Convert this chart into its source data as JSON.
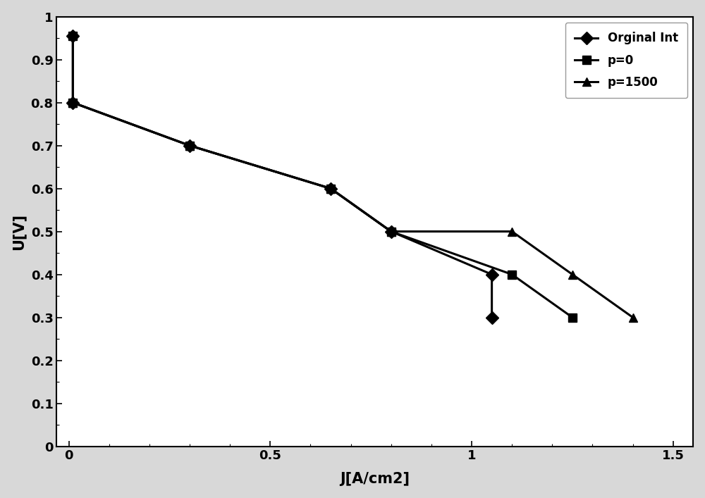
{
  "series": [
    {
      "label": "Orginal Int",
      "x": [
        0.01,
        0.01,
        0.3,
        0.65,
        0.8,
        1.05,
        1.05
      ],
      "y": [
        0.955,
        0.8,
        0.7,
        0.6,
        0.5,
        0.4,
        0.3
      ],
      "marker": "D",
      "markersize": 9,
      "color": "#000000"
    },
    {
      "label": "p=0",
      "x": [
        0.01,
        0.01,
        0.3,
        0.65,
        0.8,
        1.1,
        1.25
      ],
      "y": [
        0.955,
        0.8,
        0.7,
        0.6,
        0.5,
        0.4,
        0.3
      ],
      "marker": "s",
      "markersize": 9,
      "color": "#000000"
    },
    {
      "label": "p=1500",
      "x": [
        0.01,
        0.3,
        0.65,
        0.8,
        1.1,
        1.25,
        1.4
      ],
      "y": [
        0.8,
        0.7,
        0.6,
        0.5,
        0.5,
        0.4,
        0.3
      ],
      "marker": "^",
      "markersize": 9,
      "color": "#000000"
    }
  ],
  "xlabel": "J[A/cm2]",
  "ylabel": "U[V]",
  "xlim": [
    -0.03,
    1.55
  ],
  "ylim": [
    0,
    1.0
  ],
  "xticks": [
    0,
    0.5,
    1.0,
    1.5
  ],
  "yticks": [
    0,
    0.1,
    0.2,
    0.3,
    0.4,
    0.5,
    0.6,
    0.7,
    0.8,
    0.9,
    1.0
  ],
  "legend_loc": "upper right",
  "figure_facecolor": "#d8d8d8",
  "axes_facecolor": "#ffffff",
  "linewidth": 2.2,
  "axis_fontsize": 15,
  "tick_fontsize": 13,
  "legend_fontsize": 12
}
